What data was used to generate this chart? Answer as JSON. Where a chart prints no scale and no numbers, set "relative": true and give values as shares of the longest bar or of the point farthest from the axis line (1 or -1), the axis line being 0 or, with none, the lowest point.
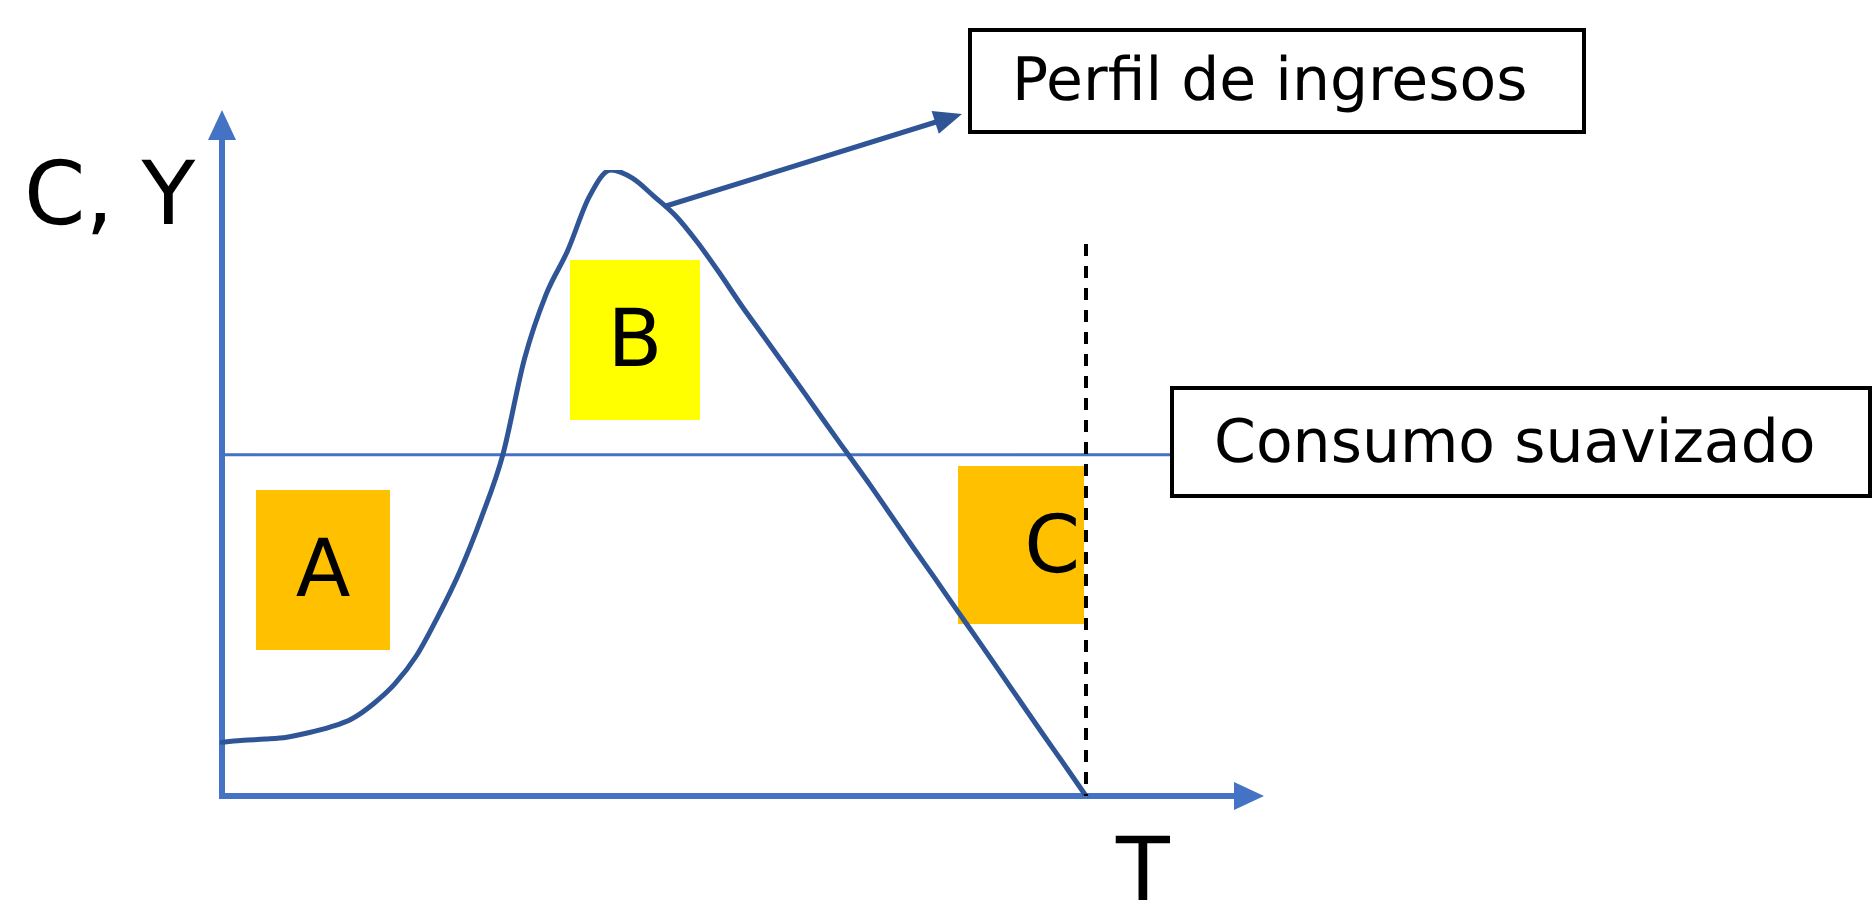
{
  "chart_data": {
    "type": "line",
    "relative": true,
    "xlabel": "T",
    "ylabel": "C, Y",
    "categories": [
      null,
      null,
      null,
      null,
      null,
      null,
      null,
      null,
      null,
      null,
      null,
      null,
      null,
      null,
      null,
      null,
      null,
      null,
      null,
      null,
      null,
      null,
      null,
      null,
      null,
      null,
      null,
      null,
      null,
      null,
      null,
      null,
      null,
      null,
      null,
      null,
      null,
      null,
      null,
      null,
      null,
      null,
      null,
      null,
      null,
      null,
      null,
      null,
      null
    ],
    "series": [
      {
        "name": "Perfil de ingresos",
        "color": "#2f5597",
        "values": [
          0.086,
          0.089,
          0.091,
          0.094,
          0.101,
          0.11,
          0.123,
          0.147,
          0.179,
          0.224,
          0.287,
          0.358,
          0.444,
          0.545,
          0.698,
          0.801,
          0.871,
          0.957,
          1,
          0.987,
          0.958,
          0.927,
          0.885,
          0.837,
          0.786,
          0.738,
          0.69,
          0.642,
          0.593,
          0.545,
          0.497,
          0.447,
          0.397,
          0.348,
          0.298,
          0.249,
          0.199,
          0.149,
          0.099,
          0.05,
          0,
          null,
          null,
          null,
          null,
          null,
          null,
          null,
          null
        ]
      },
      {
        "name": "Consumo suavizado",
        "color": "#4472c4",
        "values": [
          0.545,
          0.545,
          0.545,
          0.545,
          0.545,
          0.545,
          0.545,
          0.545,
          0.545,
          0.545,
          0.545,
          0.545,
          0.545,
          0.545,
          0.545,
          0.545,
          0.545,
          0.545,
          0.545,
          0.545,
          0.545,
          0.545,
          0.545,
          0.545,
          0.545,
          0.545,
          0.545,
          0.545,
          0.545,
          0.545,
          0.545,
          0.545,
          0.545,
          0.545,
          0.545,
          0.545,
          0.545,
          0.545,
          0.545,
          0.545,
          0.545,
          0.545,
          0.545,
          0.545,
          0.545,
          null,
          null,
          null,
          null
        ]
      }
    ],
    "ref_lines": [
      {
        "axis": "y",
        "value": 0,
        "color": "#4472c4"
      }
    ],
    "annotations": [
      "A",
      "B",
      "C"
    ],
    "marker": "none"
  }
}
